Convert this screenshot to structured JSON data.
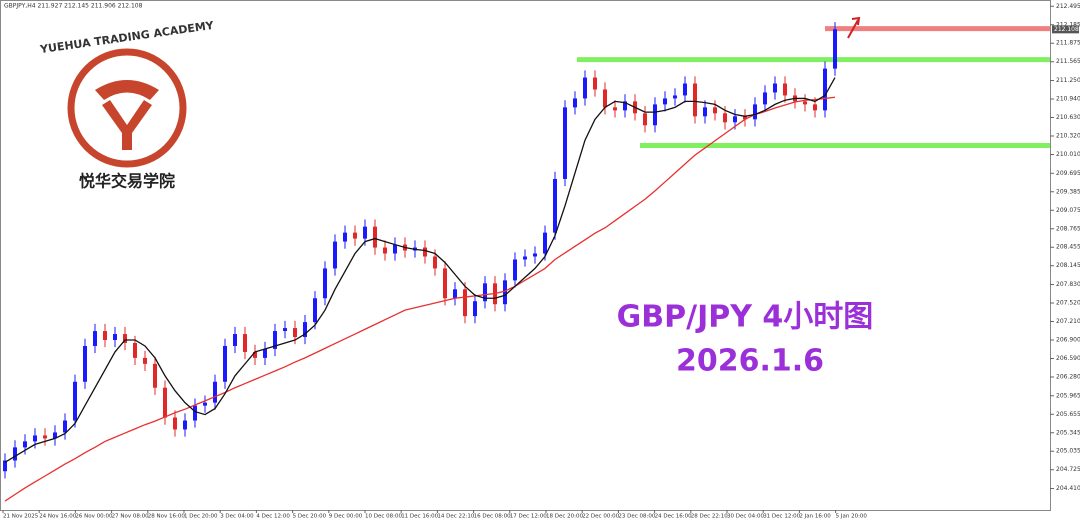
{
  "chart_data": {
    "type": "candlestick",
    "header": "GBPJPY,H4  211.927 212.145 211.906 212.108",
    "annotation_title": "GBP/JPY  4小时图",
    "annotation_date": "2026.1.6",
    "annotation_color": "#9b30d9",
    "logo": {
      "name_en": "YUEHUA TRADING ACADEMY",
      "name_cn": "悦华交易学院",
      "color": "#c8452d"
    },
    "up_color": "#1a1aff",
    "down_color": "#e02828",
    "ylim": [
      204.05,
      212.6
    ],
    "yticks": [
      212.495,
      212.185,
      211.875,
      211.565,
      {
        "value": 211.25,
        "label": "211.250"
      },
      {
        "value": 210.94,
        "label": "210.940"
      },
      {
        "value": 210.63,
        "label": "210.630"
      },
      {
        "value": 210.32,
        "label": "210.320"
      },
      {
        "value": 210.01,
        "label": "210.010"
      },
      209.695,
      209.385,
      209.075,
      208.765,
      208.455,
      208.145,
      {
        "value": 207.83,
        "label": "207.830"
      },
      {
        "value": 207.52,
        "label": "207.520"
      },
      {
        "value": 207.21,
        "label": "207.210"
      },
      {
        "value": 206.9,
        "label": "206.900"
      },
      {
        "value": 206.59,
        "label": "206.590"
      },
      {
        "value": 206.28,
        "label": "206.280"
      },
      205.965,
      205.655,
      205.345,
      205.035,
      204.725,
      {
        "value": 204.41,
        "label": "204.410"
      }
    ],
    "current_price": {
      "value": 212.108,
      "label": "212.108"
    },
    "x_labels": [
      "21 Nov 2025",
      "24 Nov 16:00",
      "26 Nov 00:00",
      "27 Nov 08:00",
      "28 Nov 16:00",
      "1 Dec 20:00",
      "3 Dec 04:00",
      "4 Dec 12:00",
      "5 Dec 20:00",
      "9 Dec 00:00",
      "10 Dec 08:00",
      "11 Dec 16:00",
      "14 Dec 22:10",
      "16 Dec 08:00",
      "17 Dec 12:00",
      "18 Dec 20:00",
      "22 Dec 00:00",
      "23 Dec 08:00",
      "24 Dec 16:00",
      "28 Dec 22:10",
      "30 Dec 04:00",
      "31 Dec 12:00",
      "2 Jan 16:00",
      "5 Jan 20:00"
    ],
    "levels": [
      {
        "value": 212.12,
        "color": "#f08080"
      },
      {
        "value": 211.6,
        "color": "#80f060"
      },
      {
        "value": 210.16,
        "color": "#80f060"
      }
    ],
    "ohlc": [
      [
        204.7,
        205.0,
        204.58,
        204.88
      ],
      [
        204.88,
        205.22,
        204.76,
        205.1
      ],
      [
        205.1,
        205.32,
        204.98,
        205.2
      ],
      [
        205.2,
        205.42,
        205.08,
        205.3
      ],
      [
        205.3,
        205.42,
        205.13,
        205.25
      ],
      [
        205.25,
        205.47,
        205.13,
        205.35
      ],
      [
        205.35,
        205.67,
        205.23,
        205.55
      ],
      [
        205.55,
        206.32,
        205.43,
        206.2
      ],
      [
        206.2,
        206.92,
        206.08,
        206.8
      ],
      [
        206.8,
        207.17,
        206.68,
        207.05
      ],
      [
        207.05,
        207.17,
        206.78,
        206.9
      ],
      [
        206.9,
        207.12,
        206.78,
        207.0
      ],
      [
        207.0,
        207.12,
        206.73,
        206.85
      ],
      [
        206.85,
        206.97,
        206.48,
        206.6
      ],
      [
        206.6,
        206.72,
        206.38,
        206.5
      ],
      [
        206.5,
        206.62,
        205.98,
        206.1
      ],
      [
        206.1,
        206.22,
        205.48,
        205.6
      ],
      [
        205.6,
        205.72,
        205.28,
        205.4
      ],
      [
        205.4,
        205.67,
        205.28,
        205.55
      ],
      [
        205.55,
        205.92,
        205.43,
        205.8
      ],
      [
        205.8,
        205.97,
        205.68,
        205.85
      ],
      [
        205.85,
        206.32,
        205.73,
        206.2
      ],
      [
        206.2,
        206.92,
        206.08,
        206.8
      ],
      [
        206.8,
        207.12,
        206.68,
        207.0
      ],
      [
        207.0,
        207.12,
        206.58,
        206.7
      ],
      [
        206.7,
        206.82,
        206.48,
        206.6
      ],
      [
        206.6,
        206.87,
        206.48,
        206.75
      ],
      [
        206.75,
        207.17,
        206.63,
        207.05
      ],
      [
        207.05,
        207.22,
        206.93,
        207.1
      ],
      [
        207.1,
        207.22,
        206.83,
        206.95
      ],
      [
        206.95,
        207.32,
        206.83,
        207.2
      ],
      [
        207.2,
        207.72,
        207.08,
        207.6
      ],
      [
        207.6,
        208.22,
        207.48,
        208.1
      ],
      [
        208.1,
        208.67,
        207.98,
        208.55
      ],
      [
        208.55,
        208.82,
        208.43,
        208.7
      ],
      [
        208.7,
        208.82,
        208.48,
        208.6
      ],
      [
        208.6,
        208.92,
        208.48,
        208.8
      ],
      [
        208.8,
        208.92,
        208.33,
        208.45
      ],
      [
        208.45,
        208.57,
        208.23,
        208.35
      ],
      [
        208.35,
        208.62,
        208.23,
        208.5
      ],
      [
        208.5,
        208.62,
        208.28,
        208.4
      ],
      [
        208.4,
        208.57,
        208.28,
        208.45
      ],
      [
        208.45,
        208.57,
        208.18,
        208.3
      ],
      [
        208.3,
        208.42,
        207.98,
        208.1
      ],
      [
        208.1,
        208.22,
        207.48,
        207.6
      ],
      [
        207.6,
        207.87,
        207.48,
        207.75
      ],
      [
        207.75,
        207.87,
        207.18,
        207.3
      ],
      [
        207.3,
        207.67,
        207.18,
        207.55
      ],
      [
        207.55,
        207.97,
        207.43,
        207.85
      ],
      [
        207.85,
        207.97,
        207.38,
        207.5
      ],
      [
        207.5,
        208.02,
        207.38,
        207.9
      ],
      [
        207.9,
        208.37,
        207.78,
        208.25
      ],
      [
        208.25,
        208.42,
        208.13,
        208.3
      ],
      [
        208.3,
        208.47,
        208.18,
        208.35
      ],
      [
        208.35,
        208.82,
        208.23,
        208.7
      ],
      [
        208.7,
        209.72,
        208.58,
        209.6
      ],
      [
        209.6,
        210.92,
        209.48,
        210.8
      ],
      [
        210.8,
        211.07,
        210.68,
        210.95
      ],
      [
        210.95,
        211.42,
        210.83,
        211.3
      ],
      [
        211.3,
        211.42,
        210.98,
        211.1
      ],
      [
        211.1,
        211.22,
        210.68,
        210.8
      ],
      [
        210.8,
        210.92,
        210.63,
        210.75
      ],
      [
        210.75,
        211.02,
        210.63,
        210.9
      ],
      [
        210.9,
        211.02,
        210.58,
        210.7
      ],
      [
        210.7,
        210.82,
        210.38,
        210.5
      ],
      [
        210.5,
        210.97,
        210.38,
        210.85
      ],
      [
        210.85,
        211.07,
        210.73,
        210.95
      ],
      [
        210.95,
        211.12,
        210.83,
        211.0
      ],
      [
        211.0,
        211.32,
        210.88,
        211.2
      ],
      [
        211.2,
        211.32,
        210.53,
        210.65
      ],
      [
        210.65,
        210.92,
        210.53,
        210.8
      ],
      [
        210.8,
        210.92,
        210.58,
        210.7
      ],
      [
        210.7,
        210.82,
        210.43,
        210.55
      ],
      [
        210.55,
        210.77,
        210.43,
        210.65
      ],
      [
        210.65,
        210.77,
        210.48,
        210.6
      ],
      [
        210.6,
        210.97,
        210.48,
        210.85
      ],
      [
        210.85,
        211.17,
        210.73,
        211.05
      ],
      [
        211.05,
        211.32,
        210.93,
        211.2
      ],
      [
        211.2,
        211.32,
        210.88,
        211.0
      ],
      [
        211.0,
        211.12,
        210.78,
        210.9
      ],
      [
        210.9,
        211.02,
        210.73,
        210.85
      ],
      [
        210.85,
        210.97,
        210.63,
        210.75
      ],
      [
        210.75,
        211.57,
        210.63,
        211.45
      ],
      [
        211.45,
        212.23,
        211.33,
        212.11
      ]
    ],
    "ma_fast": {
      "color": "#111111",
      "values": [
        204.85,
        204.95,
        205.05,
        205.15,
        205.2,
        205.25,
        205.33,
        205.5,
        205.8,
        206.1,
        206.4,
        206.7,
        206.9,
        206.9,
        206.8,
        206.6,
        206.3,
        206.05,
        205.85,
        205.7,
        205.65,
        205.75,
        206.0,
        206.3,
        206.5,
        206.7,
        206.75,
        206.8,
        206.85,
        206.9,
        207.0,
        207.15,
        207.4,
        207.75,
        208.05,
        208.35,
        208.55,
        208.6,
        208.55,
        208.5,
        208.45,
        208.42,
        208.4,
        208.35,
        208.2,
        208.0,
        207.8,
        207.65,
        207.6,
        207.6,
        207.65,
        207.8,
        207.95,
        208.1,
        208.3,
        208.65,
        209.15,
        209.7,
        210.25,
        210.6,
        210.8,
        210.9,
        210.88,
        210.8,
        210.72,
        210.72,
        210.75,
        210.8,
        210.9,
        210.9,
        210.88,
        210.85,
        210.75,
        210.68,
        210.65,
        210.68,
        210.75,
        210.85,
        210.92,
        210.95,
        210.95,
        210.9,
        211.0,
        211.3
      ]
    },
    "ma_slow": {
      "color": "#e83030",
      "values": [
        204.2,
        204.31,
        204.42,
        204.52,
        204.62,
        204.72,
        204.82,
        204.91,
        205.01,
        205.1,
        205.2,
        205.27,
        205.34,
        205.41,
        205.48,
        205.54,
        205.61,
        205.68,
        205.74,
        205.81,
        205.88,
        205.95,
        206.02,
        206.1,
        206.17,
        206.24,
        206.31,
        206.38,
        206.45,
        206.53,
        206.6,
        206.68,
        206.76,
        206.84,
        206.92,
        207.0,
        207.08,
        207.16,
        207.24,
        207.32,
        207.4,
        207.44,
        207.48,
        207.52,
        207.56,
        207.6,
        207.62,
        207.64,
        207.66,
        207.68,
        207.72,
        207.8,
        207.9,
        208.0,
        208.1,
        208.25,
        208.36,
        208.47,
        208.58,
        208.69,
        208.78,
        208.9,
        209.02,
        209.14,
        209.26,
        209.4,
        209.55,
        209.7,
        209.85,
        210.0,
        210.12,
        210.24,
        210.36,
        210.48,
        210.6,
        210.68,
        210.73,
        210.79,
        210.84,
        210.89,
        210.92,
        210.93,
        210.95,
        210.97
      ]
    }
  }
}
